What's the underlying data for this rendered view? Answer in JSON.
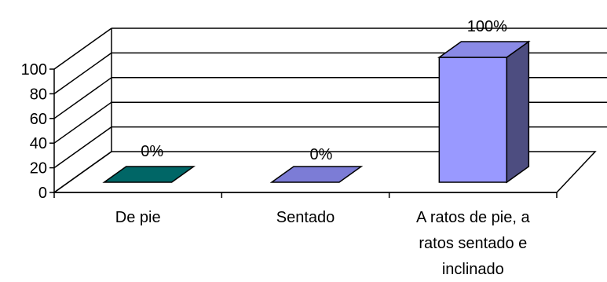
{
  "chart_data": {
    "type": "bar",
    "three_d": true,
    "categories": [
      [
        "De pie"
      ],
      [
        "Sentado"
      ],
      [
        "A ratos de pie, a",
        "ratos sentado e",
        "inclinado"
      ]
    ],
    "values": [
      0,
      0,
      100
    ],
    "data_labels": [
      "0%",
      "0%",
      "100%"
    ],
    "bar_colors": [
      {
        "front": "#006666",
        "top": "#006666",
        "side": "#004b4b"
      },
      {
        "front": "#7c7cd6",
        "top": "#7c7cd6",
        "side": "#5a5aa8"
      },
      {
        "front": "#9999ff",
        "top": "#8a8ae6",
        "side": "#4d4d80"
      }
    ],
    "ylim": [
      0,
      100
    ],
    "yticks": [
      0,
      20,
      40,
      60,
      80,
      100
    ],
    "grid": true,
    "legend": "none"
  }
}
